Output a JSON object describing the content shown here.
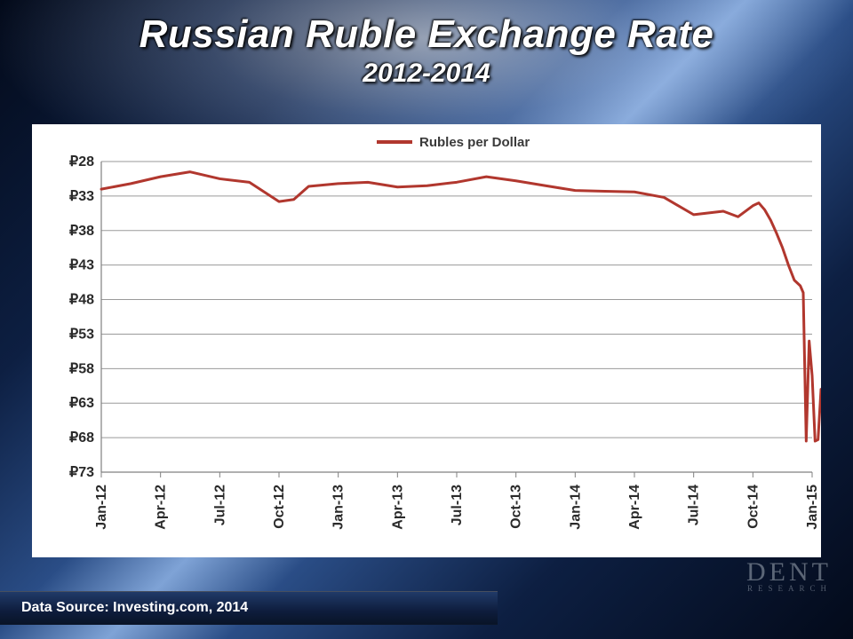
{
  "header": {
    "title": "Russian Ruble Exchange Rate",
    "subtitle": "2012-2014"
  },
  "chart": {
    "type": "line",
    "series_label": "Rubles per Dollar",
    "line_color": "#b1372e",
    "line_width": 3,
    "background_color": "#ffffff",
    "grid_color": "#9a9a9a",
    "axis_color": "#808080",
    "tick_font_size": 16,
    "tick_font_weight": 700,
    "tick_color": "#2a2a2a",
    "legend_font_size": 15,
    "y_axis": {
      "min": 73,
      "max": 28,
      "ticks": [
        28,
        33,
        38,
        43,
        48,
        53,
        58,
        63,
        68,
        73
      ],
      "prefix": "₽",
      "inverted": true
    },
    "x_axis": {
      "labels": [
        "Jan-12",
        "Apr-12",
        "Jul-12",
        "Oct-12",
        "Jan-13",
        "Apr-13",
        "Jul-13",
        "Oct-13",
        "Jan-14",
        "Apr-14",
        "Jul-14",
        "Oct-14",
        "Jan-15"
      ],
      "rotation": -90
    },
    "data": {
      "x": [
        0,
        0.5,
        1,
        1.5,
        2,
        2.5,
        3,
        3.25,
        3.5,
        4,
        4.5,
        5,
        5.5,
        6,
        6.5,
        7,
        7.5,
        8,
        8.5,
        9,
        9.5,
        10,
        10.5,
        10.75,
        11,
        11.1,
        11.2,
        11.3,
        11.4,
        11.5,
        11.6,
        11.7,
        11.8,
        11.85,
        11.9,
        11.95,
        12,
        12.05,
        12.1,
        12.15,
        12.2,
        12.3
      ],
      "y": [
        32,
        31.2,
        30.2,
        29.5,
        30.5,
        31.0,
        33.8,
        33.5,
        31.6,
        31.2,
        31.0,
        31.7,
        31.5,
        31.0,
        30.2,
        30.8,
        31.5,
        32.2,
        32.3,
        32.4,
        33.2,
        35.7,
        35.2,
        36.0,
        34.4,
        34.0,
        35.0,
        36.5,
        38.4,
        40.5,
        43.0,
        45.2,
        46.0,
        47.0,
        68.5,
        54.0,
        59.0,
        68.5,
        68.3,
        61.0,
        66.0,
        65.5
      ]
    }
  },
  "footer": {
    "label": "Data Source: Investing.com, 2014"
  },
  "watermark": {
    "main": "DENT",
    "sub": "RESEARCH"
  },
  "colors": {
    "slide_bg_dark": "#030a1a",
    "slide_bg_mid": "#2a4d86",
    "slide_bg_light": "#7fa3d6",
    "title_color": "#ffffff"
  }
}
